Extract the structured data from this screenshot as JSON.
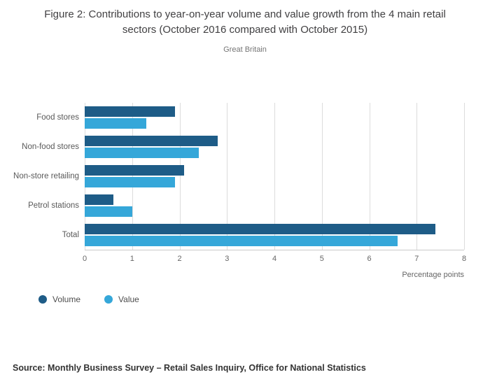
{
  "header": {
    "title": "Figure 2: Contributions to year-on-year volume and value growth from the 4 main retail sectors (October 2016 compared with October 2015)",
    "subtitle": "Great Britain"
  },
  "chart_data": {
    "type": "bar",
    "orientation": "horizontal",
    "title": "Figure 2: Contributions to year-on-year volume and value growth from the 4 main retail sectors (October 2016 compared with October 2015)",
    "subtitle": "Great Britain",
    "categories": [
      "Food stores",
      "Non-food stores",
      "Non-store retailing",
      "Petrol stations",
      "Total"
    ],
    "series": [
      {
        "name": "Volume",
        "color": "#1e5c87",
        "values": [
          1.9,
          2.8,
          2.1,
          0.6,
          7.4
        ]
      },
      {
        "name": "Value",
        "color": "#35a7d9",
        "values": [
          1.3,
          2.4,
          1.9,
          1.0,
          6.6
        ]
      }
    ],
    "xlabel": "Percentage points",
    "ylabel": "",
    "xlim": [
      0,
      8
    ],
    "xticks": [
      0,
      1,
      2,
      3,
      4,
      5,
      6,
      7,
      8
    ],
    "grid": true,
    "legend_position": "bottom"
  },
  "footer": {
    "source": "Source: Monthly Business Survey – Retail Sales Inquiry, Office for National Statistics"
  }
}
